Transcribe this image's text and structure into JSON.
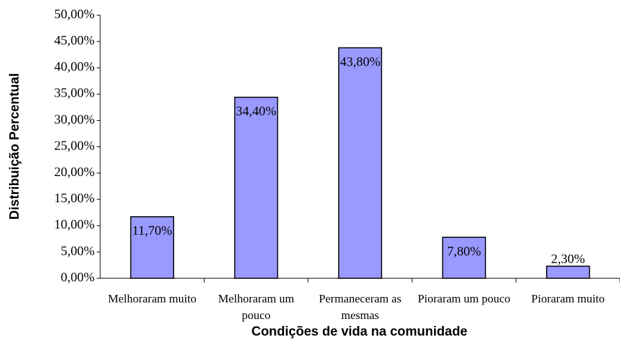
{
  "chart_data": {
    "type": "bar",
    "xlabel": "Condições de vida na comunidade",
    "ylabel": "Distribuição Percentual",
    "categories": [
      "Melhoraram muito",
      "Melhoraram um pouco",
      "Permaneceram as mesmas",
      "Pioraram um pouco",
      "Pioraram muito"
    ],
    "values": [
      11.7,
      34.4,
      43.8,
      7.8,
      2.3
    ],
    "value_labels": [
      "11,70%",
      "34,40%",
      "43,80%",
      "7,80%",
      "2,30%"
    ],
    "color": "#9999ff",
    "ylim": [
      0,
      50
    ],
    "yticks": [
      {
        "value": 0,
        "label": "0,00%"
      },
      {
        "value": 5,
        "label": "5,00%"
      },
      {
        "value": 10,
        "label": "10,00%"
      },
      {
        "value": 15,
        "label": "15,00%"
      },
      {
        "value": 20,
        "label": "20,00%"
      },
      {
        "value": 25,
        "label": "25,00%"
      },
      {
        "value": 30,
        "label": "30,00%"
      },
      {
        "value": 35,
        "label": "35,00%"
      },
      {
        "value": 40,
        "label": "40,00%"
      },
      {
        "value": 45,
        "label": "45,00%"
      },
      {
        "value": 50,
        "label": "50,00%"
      }
    ],
    "grid": false
  }
}
